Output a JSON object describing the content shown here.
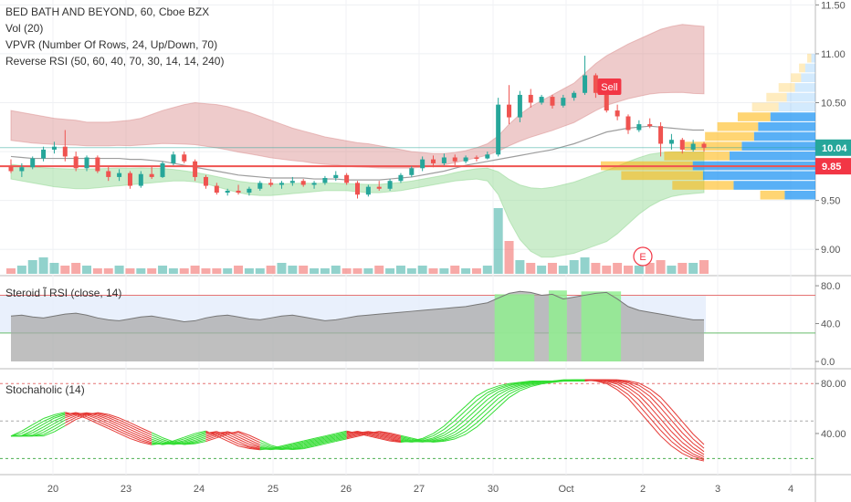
{
  "legend": {
    "symbol_line": "BED BATH AND BEYOND, 60, Cboe BZX",
    "vol": "Vol (20)",
    "vpvr": "VPVR (Number Of Rows, 24, Up/Down, 70)",
    "reverse_rsi": "Reverse RSI (50, 60, 40, 70, 30, 14, 14, 240)"
  },
  "markers": {
    "sell": "Sell",
    "earnings": "E"
  },
  "price_tags": {
    "last": {
      "value": "10.04",
      "color": "#26a69a"
    },
    "line": {
      "value": "9.85",
      "color": "#f23645"
    }
  },
  "colors": {
    "up": "#26a69a",
    "down": "#ef5350",
    "upper_band": "#d98c8c",
    "lower_band": "#8fd68f",
    "vpvr_up": "#2196f3",
    "vpvr_down": "#ffb300",
    "rsi_fill": "#aaaaaa",
    "rsi_green": "#90ee90",
    "stoch_up": "#33dd33",
    "stoch_down": "#e53935"
  },
  "chart_data": [
    {
      "type": "candlestick",
      "title": "BED BATH AND BEYOND, 60, Cboe BZX",
      "y_axis_ticks": [
        "9.00",
        "9.50",
        "10.00",
        "10.50",
        "11.00",
        "11.50"
      ],
      "ylim": [
        8.75,
        11.55
      ],
      "x_tick_labels": [
        "20",
        "23",
        "24",
        "25",
        "26",
        "27",
        "30",
        "Oct",
        "2",
        "3",
        "4"
      ],
      "horizontal_line": 9.85,
      "last_price": 10.04,
      "candles_ohlc": [
        [
          9.85,
          9.92,
          9.78,
          9.8
        ],
        [
          9.8,
          9.88,
          9.74,
          9.84
        ],
        [
          9.84,
          9.95,
          9.82,
          9.93
        ],
        [
          9.93,
          10.05,
          9.9,
          10.02
        ],
        [
          10.02,
          10.1,
          9.98,
          10.05
        ],
        [
          10.05,
          10.22,
          9.9,
          9.95
        ],
        [
          9.95,
          10.0,
          9.8,
          9.83
        ],
        [
          9.83,
          9.96,
          9.8,
          9.94
        ],
        [
          9.94,
          9.96,
          9.78,
          9.8
        ],
        [
          9.8,
          9.85,
          9.7,
          9.74
        ],
        [
          9.74,
          9.82,
          9.7,
          9.78
        ],
        [
          9.78,
          9.8,
          9.62,
          9.65
        ],
        [
          9.65,
          9.8,
          9.63,
          9.77
        ],
        [
          9.77,
          9.85,
          9.72,
          9.74
        ],
        [
          9.74,
          9.9,
          9.73,
          9.88
        ],
        [
          9.88,
          10.0,
          9.86,
          9.97
        ],
        [
          9.97,
          10.0,
          9.88,
          9.9
        ],
        [
          9.9,
          9.92,
          9.7,
          9.74
        ],
        [
          9.74,
          9.76,
          9.62,
          9.65
        ],
        [
          9.65,
          9.68,
          9.56,
          9.58
        ],
        [
          9.58,
          9.62,
          9.55,
          9.6
        ],
        [
          9.6,
          9.66,
          9.56,
          9.58
        ],
        [
          9.58,
          9.64,
          9.55,
          9.62
        ],
        [
          9.62,
          9.7,
          9.6,
          9.68
        ],
        [
          9.68,
          9.72,
          9.64,
          9.66
        ],
        [
          9.66,
          9.7,
          9.62,
          9.68
        ],
        [
          9.68,
          9.74,
          9.65,
          9.7
        ],
        [
          9.7,
          9.72,
          9.64,
          9.66
        ],
        [
          9.66,
          9.7,
          9.62,
          9.68
        ],
        [
          9.68,
          9.75,
          9.66,
          9.73
        ],
        [
          9.73,
          9.8,
          9.7,
          9.76
        ],
        [
          9.76,
          9.78,
          9.66,
          9.68
        ],
        [
          9.68,
          9.7,
          9.52,
          9.56
        ],
        [
          9.56,
          9.66,
          9.54,
          9.64
        ],
        [
          9.64,
          9.7,
          9.6,
          9.62
        ],
        [
          9.62,
          9.72,
          9.6,
          9.7
        ],
        [
          9.7,
          9.78,
          9.68,
          9.76
        ],
        [
          9.76,
          9.85,
          9.74,
          9.83
        ],
        [
          9.83,
          9.95,
          9.8,
          9.92
        ],
        [
          9.92,
          9.96,
          9.84,
          9.88
        ],
        [
          9.88,
          9.98,
          9.86,
          9.94
        ],
        [
          9.94,
          9.97,
          9.86,
          9.9
        ],
        [
          9.9,
          9.96,
          9.88,
          9.94
        ],
        [
          9.94,
          9.96,
          9.9,
          9.93
        ],
        [
          9.93,
          10.0,
          9.92,
          9.97
        ],
        [
          9.97,
          10.55,
          9.95,
          10.48
        ],
        [
          10.48,
          10.68,
          10.28,
          10.35
        ],
        [
          10.35,
          10.62,
          10.3,
          10.58
        ],
        [
          10.58,
          10.64,
          10.45,
          10.5
        ],
        [
          10.5,
          10.58,
          10.48,
          10.56
        ],
        [
          10.56,
          10.58,
          10.44,
          10.47
        ],
        [
          10.47,
          10.58,
          10.45,
          10.55
        ],
        [
          10.55,
          10.62,
          10.52,
          10.6
        ],
        [
          10.6,
          10.98,
          10.58,
          10.78
        ],
        [
          10.78,
          10.8,
          10.55,
          10.6
        ],
        [
          10.6,
          10.64,
          10.4,
          10.42
        ],
        [
          10.42,
          10.48,
          10.32,
          10.36
        ],
        [
          10.36,
          10.38,
          10.18,
          10.22
        ],
        [
          10.22,
          10.32,
          10.2,
          10.28
        ],
        [
          10.28,
          10.34,
          10.24,
          10.26
        ],
        [
          10.26,
          10.3,
          9.95,
          10.08
        ],
        [
          10.08,
          10.18,
          10.02,
          10.12
        ],
        [
          10.12,
          10.14,
          9.98,
          10.02
        ],
        [
          10.02,
          10.12,
          10.0,
          10.08
        ],
        [
          10.08,
          10.1,
          10.0,
          10.04
        ]
      ],
      "bollinger_upper": [
        10.42,
        10.4,
        10.38,
        10.36,
        10.34,
        10.33,
        10.32,
        10.3,
        10.3,
        10.3,
        10.31,
        10.32,
        10.34,
        10.38,
        10.42,
        10.45,
        10.48,
        10.5,
        10.49,
        10.48,
        10.46,
        10.43,
        10.4,
        10.36,
        10.32,
        10.28,
        10.24,
        10.21,
        10.18,
        10.15,
        10.13,
        10.11,
        10.09,
        10.08,
        10.06,
        10.04,
        10.02,
        10.0,
        9.99,
        9.98,
        9.98,
        9.99,
        10.01,
        10.04,
        10.08,
        10.16,
        10.28,
        10.38,
        10.46,
        10.52,
        10.58,
        10.64,
        10.7,
        10.8,
        10.9,
        10.98,
        11.04,
        11.1,
        11.15,
        11.2,
        11.25,
        11.28,
        11.3,
        11.29,
        11.28
      ],
      "bollinger_lower": [
        9.72,
        9.7,
        9.68,
        9.66,
        9.64,
        9.63,
        9.62,
        9.62,
        9.63,
        9.64,
        9.65,
        9.66,
        9.67,
        9.68,
        9.69,
        9.7,
        9.7,
        9.69,
        9.67,
        9.64,
        9.61,
        9.58,
        9.56,
        9.55,
        9.55,
        9.56,
        9.57,
        9.58,
        9.59,
        9.6,
        9.6,
        9.6,
        9.59,
        9.58,
        9.58,
        9.59,
        9.6,
        9.62,
        9.64,
        9.66,
        9.68,
        9.7,
        9.71,
        9.72,
        9.7,
        9.56,
        9.3,
        9.1,
        8.98,
        8.92,
        8.92,
        8.94,
        8.96,
        9.0,
        9.04,
        9.08,
        9.16,
        9.26,
        9.36,
        9.44,
        9.5,
        9.54,
        9.56,
        9.57,
        9.58
      ],
      "moving_average": [
        9.95,
        9.94,
        9.93,
        9.93,
        9.93,
        9.93,
        9.93,
        9.93,
        9.93,
        9.93,
        9.93,
        9.92,
        9.92,
        9.91,
        9.9,
        9.88,
        9.86,
        9.84,
        9.82,
        9.8,
        9.78,
        9.76,
        9.75,
        9.74,
        9.73,
        9.73,
        9.73,
        9.73,
        9.72,
        9.72,
        9.72,
        9.71,
        9.71,
        9.71,
        9.71,
        9.72,
        9.73,
        9.74,
        9.76,
        9.78,
        9.8,
        9.83,
        9.86,
        9.88,
        9.9,
        9.92,
        9.94,
        9.96,
        9.98,
        10.0,
        10.02,
        10.05,
        10.08,
        10.12,
        10.16,
        10.2,
        10.22,
        10.24,
        10.25,
        10.26,
        10.25,
        10.24,
        10.23,
        10.22,
        10.22
      ],
      "volume": [
        2,
        3,
        5,
        6,
        4,
        3,
        4,
        3,
        2,
        2,
        3,
        2,
        2,
        2,
        3,
        2,
        2,
        3,
        2,
        2,
        2,
        3,
        2,
        2,
        3,
        4,
        3,
        3,
        2,
        2,
        3,
        2,
        2,
        2,
        3,
        2,
        3,
        2,
        3,
        2,
        2,
        3,
        2,
        2,
        3,
        24,
        12,
        5,
        4,
        3,
        4,
        3,
        5,
        6,
        4,
        3,
        4,
        3,
        3,
        4,
        5,
        3,
        4,
        4,
        5
      ],
      "vpvr": {
        "price_levels": [
          9.55,
          9.65,
          9.75,
          9.85,
          9.95,
          10.05,
          10.15,
          10.25,
          10.35,
          10.45,
          10.55,
          10.65,
          10.75,
          10.85,
          10.95
        ],
        "up_volume": [
          15,
          40,
          55,
          60,
          42,
          36,
          30,
          28,
          22,
          18,
          14,
          10,
          7,
          5,
          2
        ],
        "down_volume": [
          12,
          30,
          40,
          45,
          32,
          28,
          24,
          20,
          16,
          13,
          10,
          8,
          5,
          3,
          2
        ]
      }
    },
    {
      "type": "area",
      "title": "Steroid Ĩ RSI (close, 14)",
      "y_axis_ticks": [
        "0.0",
        "40.0",
        "80.0"
      ],
      "ylim": [
        0,
        82
      ],
      "levels": [
        70,
        30
      ],
      "values": [
        48,
        49,
        47,
        46,
        48,
        50,
        51,
        49,
        46,
        44,
        43,
        45,
        47,
        48,
        46,
        44,
        42,
        43,
        46,
        48,
        49,
        47,
        45,
        44,
        46,
        48,
        49,
        47,
        45,
        43,
        44,
        46,
        48,
        49,
        50,
        51,
        52,
        53,
        54,
        55,
        56,
        57,
        58,
        60,
        62,
        67,
        72,
        74,
        73,
        70,
        71,
        66,
        68,
        70,
        72,
        73,
        66,
        58,
        54,
        52,
        50,
        48,
        46,
        44,
        44
      ],
      "highlight_ranges": [
        [
          45,
          48
        ],
        [
          50,
          51
        ],
        [
          53,
          56
        ]
      ]
    },
    {
      "type": "line",
      "title": "Stochaholic (14)",
      "y_axis_ticks": [
        "40.00",
        "80.00"
      ],
      "ylim": [
        10,
        86
      ],
      "levels": [
        80,
        50,
        20
      ],
      "series_count": 8,
      "base_values": [
        38,
        42,
        47,
        52,
        55,
        57,
        55,
        52,
        48,
        44,
        40,
        36,
        33,
        31,
        32,
        34,
        37,
        40,
        42,
        38,
        34,
        30,
        28,
        27,
        28,
        30,
        32,
        34,
        36,
        38,
        40,
        42,
        40,
        38,
        36,
        34,
        33,
        34,
        36,
        40,
        46,
        54,
        62,
        70,
        75,
        78,
        80,
        81,
        82,
        82,
        82,
        83,
        83,
        83,
        82,
        80,
        75,
        68,
        58,
        48,
        38,
        30,
        24,
        20,
        18
      ]
    }
  ]
}
